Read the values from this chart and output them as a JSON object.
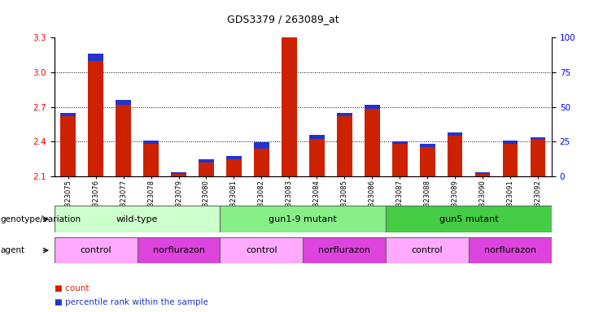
{
  "title": "GDS3379 / 263089_at",
  "samples": [
    "GSM323075",
    "GSM323076",
    "GSM323077",
    "GSM323078",
    "GSM323079",
    "GSM323080",
    "GSM323081",
    "GSM323082",
    "GSM323083",
    "GSM323084",
    "GSM323085",
    "GSM323086",
    "GSM323087",
    "GSM323088",
    "GSM323089",
    "GSM323090",
    "GSM323091",
    "GSM323092"
  ],
  "red_values": [
    2.62,
    3.1,
    2.72,
    2.38,
    2.12,
    2.22,
    2.25,
    2.34,
    3.3,
    2.42,
    2.62,
    2.68,
    2.38,
    2.35,
    2.45,
    2.12,
    2.38,
    2.42
  ],
  "blue_values": [
    0.025,
    0.06,
    0.04,
    0.03,
    0.015,
    0.03,
    0.025,
    0.055,
    0.04,
    0.04,
    0.03,
    0.035,
    0.02,
    0.03,
    0.03,
    0.015,
    0.03,
    0.02
  ],
  "base": 2.1,
  "ylim_left": [
    2.1,
    3.3
  ],
  "ylim_right": [
    0,
    100
  ],
  "yticks_left": [
    2.1,
    2.4,
    2.7,
    3.0,
    3.3
  ],
  "yticks_right": [
    0,
    25,
    50,
    75,
    100
  ],
  "hlines": [
    2.4,
    2.7,
    3.0
  ],
  "bar_color_red": "#cc2200",
  "bar_color_blue": "#2233cc",
  "genotype_groups": [
    {
      "label": "wild-type",
      "start": 0,
      "end": 6,
      "color": "#ccffcc"
    },
    {
      "label": "gun1-9 mutant",
      "start": 6,
      "end": 12,
      "color": "#88ee88"
    },
    {
      "label": "gun5 mutant",
      "start": 12,
      "end": 18,
      "color": "#44cc44"
    }
  ],
  "agent_groups": [
    {
      "label": "control",
      "start": 0,
      "end": 3,
      "color": "#ffaaff"
    },
    {
      "label": "norflurazon",
      "start": 3,
      "end": 6,
      "color": "#dd44dd"
    },
    {
      "label": "control",
      "start": 6,
      "end": 9,
      "color": "#ffaaff"
    },
    {
      "label": "norflurazon",
      "start": 9,
      "end": 12,
      "color": "#dd44dd"
    },
    {
      "label": "control",
      "start": 12,
      "end": 15,
      "color": "#ffaaff"
    },
    {
      "label": "norflurazon",
      "start": 15,
      "end": 18,
      "color": "#dd44dd"
    }
  ],
  "row_label_genotype": "genotype/variation",
  "row_label_agent": "agent",
  "legend_red": "count",
  "legend_blue": "percentile rank within the sample",
  "bar_width": 0.55
}
